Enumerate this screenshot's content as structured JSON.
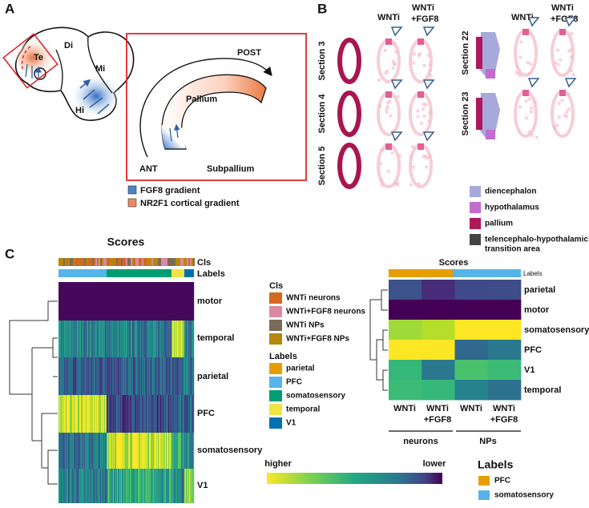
{
  "panel_a": {
    "label": "A",
    "regions": [
      "Te",
      "Di",
      "Mi",
      "Hi"
    ],
    "directions": [
      "POST",
      "ANT"
    ],
    "areas": [
      "Pallium",
      "Subpallium"
    ],
    "legend": [
      {
        "label": "FGF8 gradient",
        "color": "#4a86c8"
      },
      {
        "label": "NR2F1 cortical gradient",
        "color": "#f08a5d"
      }
    ]
  },
  "panel_b": {
    "label": "B",
    "left_columns": [
      [
        "WNTi"
      ],
      [
        "WNTi",
        "+FGF8"
      ]
    ],
    "right_columns": [
      [
        "WNTi"
      ],
      [
        "WNTi",
        "+FGF8"
      ]
    ],
    "sections": [
      "Section 3",
      "Section 4",
      "Section 5",
      "Section 22",
      "Section 23"
    ],
    "legend": [
      {
        "label": [
          "diencephalon"
        ],
        "color": "#a7a9dc"
      },
      {
        "label": [
          "hypothalamus"
        ],
        "color": "#c26ccc"
      },
      {
        "label": [
          "pallium"
        ],
        "color": "#b0175c"
      },
      {
        "label": [
          "telencephalo-hypothalamic",
          "transition area"
        ],
        "color": "#444444"
      }
    ]
  },
  "panel_c": {
    "label": "C",
    "left_heatmap": {
      "title": "Scores",
      "annotations": [
        "Cls",
        "Labels"
      ],
      "rows": [
        "motor",
        "temporal",
        "parietal",
        "PFC",
        "somatosensory",
        "V1"
      ]
    },
    "cls_legend": {
      "title": "Cls",
      "items": [
        {
          "label": "WNTi neurons",
          "color": "#d2691e"
        },
        {
          "label": "WNTi+FGF8 neurons",
          "color": "#d98aa0"
        },
        {
          "label": "WNTi NPs",
          "color": "#7a6a58"
        },
        {
          "label": "WNTi+FGF8 NPs",
          "color": "#b8860b"
        }
      ]
    },
    "labels_legend": {
      "title": "Labels",
      "items": [
        {
          "label": "parietal",
          "color": "#e69f00"
        },
        {
          "label": "PFC",
          "color": "#56b4e9"
        },
        {
          "label": "somatosensory",
          "color": "#009e73"
        },
        {
          "label": "temporal",
          "color": "#f0e442"
        },
        {
          "label": "V1",
          "color": "#0072b2"
        }
      ]
    },
    "right_heatmap": {
      "title": "Scores",
      "annotation": "Labels",
      "rows": [
        "parietal",
        "motor",
        "somatosensory",
        "PFC",
        "V1",
        "temporal"
      ],
      "columns": [
        [
          "WNTi"
        ],
        [
          "WNTi",
          "+FGF8"
        ],
        [
          "WNTi"
        ],
        [
          "WNTi",
          "+FGF8"
        ]
      ],
      "groups": [
        "neurons",
        "NPs"
      ]
    },
    "colorbar": {
      "high": "higher",
      "low": "lower"
    },
    "bottom_legend": {
      "title": "Labels",
      "items": [
        {
          "label": "PFC",
          "color": "#e69f00"
        },
        {
          "label": "somatosensory",
          "color": "#56b4e9"
        }
      ]
    }
  }
}
